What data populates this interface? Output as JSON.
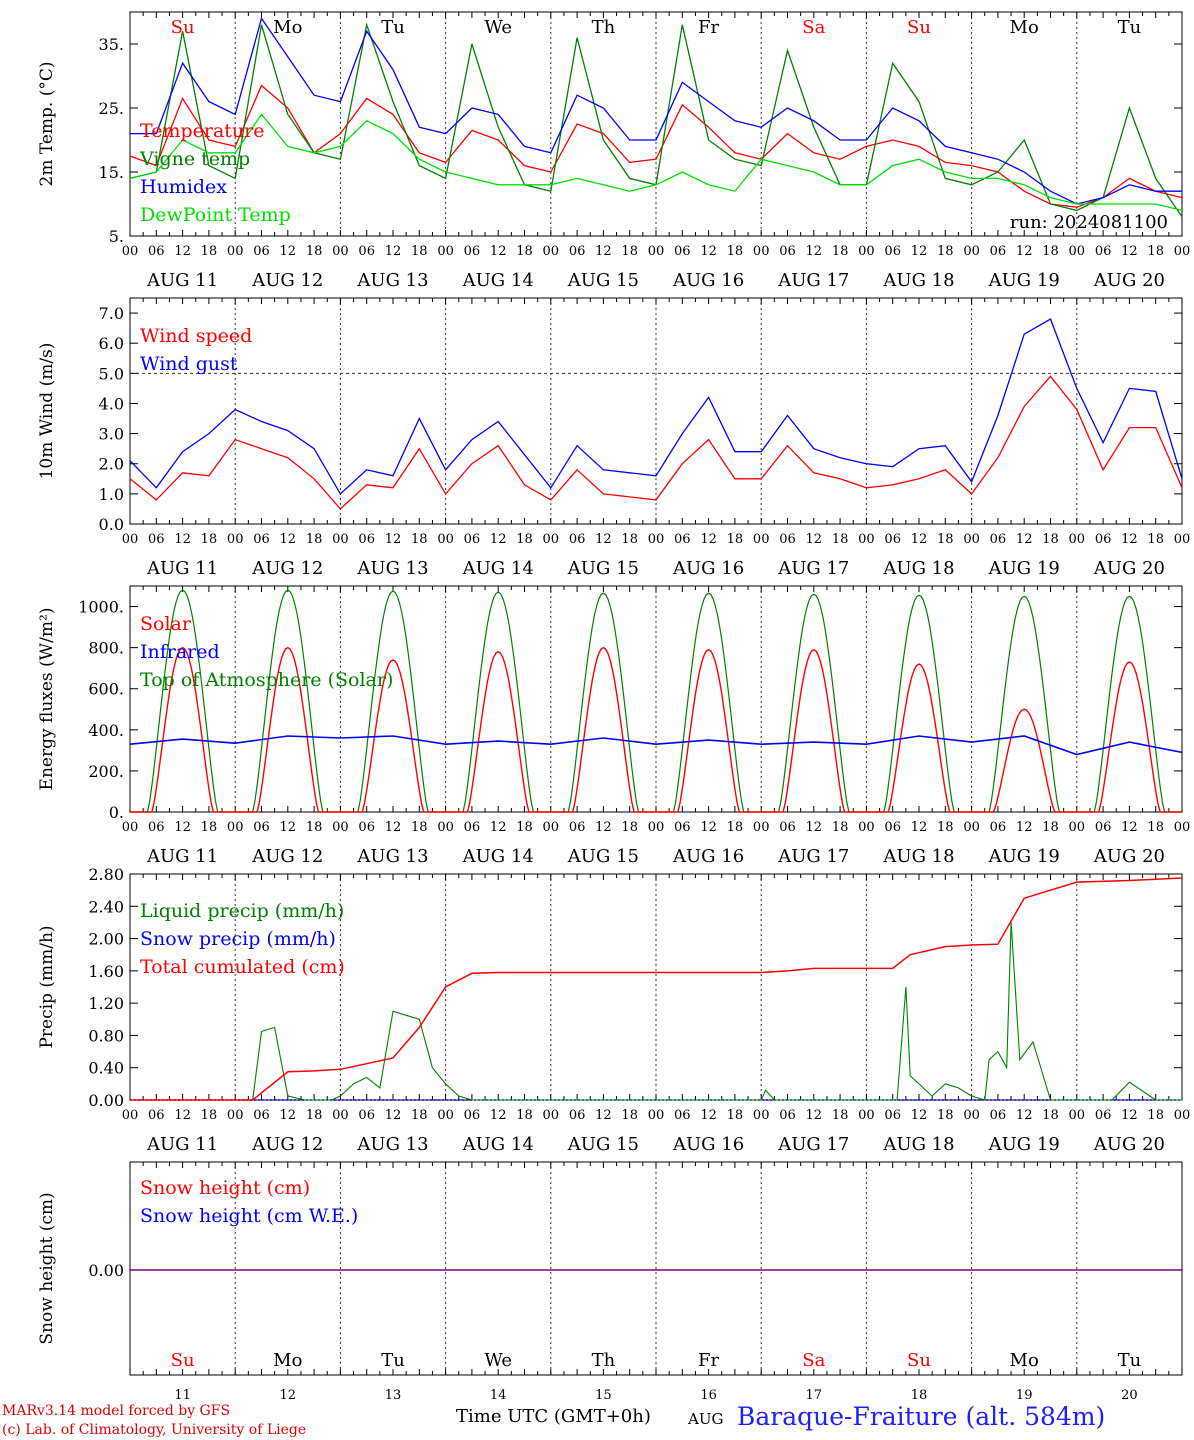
{
  "colors": {
    "red": "#ff0000",
    "green": "#008000",
    "blue": "#0000ff",
    "lightgreen": "#00e000",
    "purple": "#800080",
    "grid": "#555555"
  },
  "header_days": [
    {
      "label": "Su",
      "color": "#ff0000"
    },
    {
      "label": "Mo",
      "color": "#000000"
    },
    {
      "label": "Tu",
      "color": "#000000"
    },
    {
      "label": "We",
      "color": "#000000"
    },
    {
      "label": "Th",
      "color": "#000000"
    },
    {
      "label": "Fr",
      "color": "#000000"
    },
    {
      "label": "Sa",
      "color": "#ff0000"
    },
    {
      "label": "Su",
      "color": "#ff0000"
    },
    {
      "label": "Mo",
      "color": "#000000"
    },
    {
      "label": "Tu",
      "color": "#000000"
    }
  ],
  "hour_ticks": [
    "00",
    "06",
    "12",
    "18"
  ],
  "last_hour_tick": "00",
  "date_labels": [
    "AUG 11",
    "AUG 12",
    "AUG 13",
    "AUG 14",
    "AUG 15",
    "AUG 16",
    "AUG 17",
    "AUG 18",
    "AUG 19",
    "AUG 20"
  ],
  "day_numbers": [
    "11",
    "12",
    "13",
    "14",
    "15",
    "16",
    "17",
    "18",
    "19",
    "20"
  ],
  "run_label": "run: 2024081100",
  "footer": {
    "model": "MARv3.14 model forced by GFS",
    "lab": "(c) Lab. of Climatology, University of Liege",
    "time_label": "Time UTC (GMT+0h)",
    "aug": "AUG",
    "station": "Baraque-Fraiture (alt. 584m)"
  },
  "chart_data": [
    {
      "type": "line",
      "ylabel": "2m Temp. (°C)",
      "ylim": [
        5,
        40
      ],
      "yticks": [
        5,
        15,
        25,
        35
      ],
      "ytick_labels": [
        "5.",
        "15.",
        "25.",
        "35."
      ],
      "x_unit": "hours since AUG 11 00 UTC",
      "series": [
        {
          "name": "Temperature",
          "color": "#ff0000",
          "x": [
            0,
            6,
            12,
            18,
            24,
            30,
            36,
            42,
            48,
            54,
            60,
            66,
            72,
            78,
            84,
            90,
            96,
            102,
            108,
            114,
            120,
            126,
            132,
            138,
            144,
            150,
            156,
            162,
            168,
            174,
            180,
            186,
            192,
            198,
            204,
            210,
            216,
            222,
            228,
            234,
            240
          ],
          "y": [
            17.5,
            16,
            26.5,
            20,
            19,
            28.5,
            25,
            18,
            21,
            26.5,
            24,
            18,
            16.5,
            21.5,
            20,
            16,
            15,
            22.5,
            21,
            16.5,
            17,
            25.5,
            22,
            18,
            17,
            21,
            18,
            17,
            19,
            20,
            19,
            16.5,
            16,
            15,
            12,
            10,
            9.5,
            11,
            14,
            12,
            11
          ]
        },
        {
          "name": "Vigne temp",
          "color": "#008000",
          "x": [
            0,
            6,
            12,
            18,
            24,
            30,
            36,
            42,
            48,
            54,
            60,
            66,
            72,
            78,
            84,
            90,
            96,
            102,
            108,
            114,
            120,
            126,
            132,
            138,
            144,
            150,
            156,
            162,
            168,
            174,
            180,
            186,
            192,
            198,
            204,
            210,
            216,
            222,
            228,
            234,
            240
          ],
          "y": [
            14,
            15,
            37,
            16,
            14,
            38,
            24,
            18,
            17,
            38,
            26,
            16,
            14,
            35,
            22,
            13,
            12,
            36,
            20,
            14,
            13,
            38,
            20,
            17,
            16,
            34,
            22,
            13,
            13,
            32,
            26,
            14,
            13,
            15,
            20,
            10,
            9,
            11,
            25,
            14,
            8
          ]
        },
        {
          "name": "Humidex",
          "color": "#0000ff",
          "x": [
            0,
            6,
            12,
            18,
            24,
            30,
            36,
            42,
            48,
            54,
            60,
            66,
            72,
            78,
            84,
            90,
            96,
            102,
            108,
            114,
            120,
            126,
            132,
            138,
            144,
            150,
            156,
            162,
            168,
            174,
            180,
            186,
            192,
            198,
            204,
            210,
            216,
            222,
            228,
            234,
            240
          ],
          "y": [
            21,
            21,
            32,
            26,
            24,
            39,
            33,
            27,
            26,
            37,
            31,
            22,
            21,
            25,
            24,
            19,
            18,
            27,
            25,
            20,
            20,
            29,
            26,
            23,
            22,
            25,
            23,
            20,
            20,
            25,
            23,
            19,
            18,
            17,
            15,
            12,
            10,
            11,
            13,
            12,
            12
          ]
        },
        {
          "name": "DewPoint Temp",
          "color": "#00e000",
          "x": [
            0,
            6,
            12,
            18,
            24,
            30,
            36,
            42,
            48,
            54,
            60,
            66,
            72,
            78,
            84,
            90,
            96,
            102,
            108,
            114,
            120,
            126,
            132,
            138,
            144,
            150,
            156,
            162,
            168,
            174,
            180,
            186,
            192,
            198,
            204,
            210,
            216,
            222,
            228,
            234,
            240
          ],
          "y": [
            14,
            15,
            20,
            18,
            18,
            24,
            19,
            18,
            19,
            23,
            21,
            17,
            15,
            14,
            13,
            13,
            13,
            14,
            13,
            12,
            13,
            15,
            13,
            12,
            17,
            16,
            15,
            13,
            13,
            16,
            17,
            15,
            14,
            14,
            13,
            11,
            10,
            10,
            10,
            10,
            9
          ]
        }
      ]
    },
    {
      "type": "line",
      "ylabel": "10m Wind (m/s)",
      "ylim": [
        0,
        7.5
      ],
      "yticks": [
        0,
        1,
        2,
        3,
        4,
        5,
        6,
        7
      ],
      "ytick_labels": [
        "0.0",
        "1.0",
        "2.0",
        "3.0",
        "4.0",
        "5.0",
        "6.0",
        "7.0"
      ],
      "reference_line": 5,
      "x_unit": "hours since AUG 11 00 UTC",
      "series": [
        {
          "name": "Wind speed",
          "color": "#ff0000",
          "x": [
            0,
            6,
            12,
            18,
            24,
            30,
            36,
            42,
            48,
            54,
            60,
            66,
            72,
            78,
            84,
            90,
            96,
            102,
            108,
            114,
            120,
            126,
            132,
            138,
            144,
            150,
            156,
            162,
            168,
            174,
            180,
            186,
            192,
            198,
            204,
            210,
            216,
            222,
            228,
            234,
            240
          ],
          "y": [
            1.5,
            0.8,
            1.7,
            1.6,
            2.8,
            2.5,
            2.2,
            1.5,
            0.5,
            1.3,
            1.2,
            2.5,
            1.0,
            2.0,
            2.6,
            1.3,
            0.8,
            1.8,
            1.0,
            0.9,
            0.8,
            2.0,
            2.8,
            1.5,
            1.5,
            2.6,
            1.7,
            1.5,
            1.2,
            1.3,
            1.5,
            1.8,
            1.0,
            2.2,
            3.9,
            4.9,
            3.8,
            1.8,
            3.2,
            3.2,
            1.2
          ]
        },
        {
          "name": "Wind gust",
          "color": "#0000ff",
          "x": [
            0,
            6,
            12,
            18,
            24,
            30,
            36,
            42,
            48,
            54,
            60,
            66,
            72,
            78,
            84,
            90,
            96,
            102,
            108,
            114,
            120,
            126,
            132,
            138,
            144,
            150,
            156,
            162,
            168,
            174,
            180,
            186,
            192,
            198,
            204,
            210,
            216,
            222,
            228,
            234,
            240
          ],
          "y": [
            2.1,
            1.2,
            2.4,
            3.0,
            3.8,
            3.4,
            3.1,
            2.5,
            1.0,
            1.8,
            1.6,
            3.5,
            1.8,
            2.8,
            3.4,
            2.3,
            1.2,
            2.6,
            1.8,
            1.7,
            1.6,
            3.0,
            4.2,
            2.4,
            2.4,
            3.6,
            2.5,
            2.2,
            2.0,
            1.9,
            2.5,
            2.6,
            1.4,
            3.6,
            6.3,
            6.8,
            4.5,
            2.7,
            4.5,
            4.4,
            1.5
          ]
        }
      ]
    },
    {
      "type": "line",
      "ylabel": "Energy fluxes (W/m²)",
      "ylim": [
        0,
        1100
      ],
      "yticks": [
        0,
        200,
        400,
        600,
        800,
        1000
      ],
      "ytick_labels": [
        "0.",
        "200.",
        "400.",
        "600.",
        "800.",
        "1000."
      ],
      "x_unit": "hours since AUG 11 00 UTC",
      "solar_peaks": [
        800,
        800,
        740,
        780,
        800,
        790,
        790,
        720,
        500,
        730
      ],
      "toa_peaks": [
        1080,
        1080,
        1075,
        1070,
        1065,
        1065,
        1060,
        1055,
        1050,
        1050
      ],
      "series": [
        {
          "name": "Solar",
          "color": "#ff0000"
        },
        {
          "name": "Infrared",
          "color": "#0000ff",
          "x": [
            0,
            12,
            24,
            36,
            48,
            60,
            72,
            84,
            96,
            108,
            120,
            132,
            144,
            156,
            168,
            180,
            192,
            204,
            216,
            228,
            240
          ],
          "y": [
            330,
            355,
            335,
            370,
            360,
            370,
            330,
            345,
            330,
            360,
            330,
            350,
            330,
            340,
            330,
            370,
            340,
            370,
            280,
            340,
            290
          ]
        },
        {
          "name": "Top of Atmosphere (Solar)",
          "color": "#008000"
        }
      ]
    },
    {
      "type": "line",
      "ylabel": "Precip (mm/h)",
      "ylim": [
        0,
        2.8
      ],
      "yticks": [
        0,
        0.4,
        0.8,
        1.2,
        1.6,
        2.0,
        2.4,
        2.8
      ],
      "ytick_labels": [
        "0.00",
        "0.40",
        "0.80",
        "1.20",
        "1.60",
        "2.00",
        "2.40",
        "2.80"
      ],
      "x_unit": "hours since AUG 11 00 UTC",
      "series": [
        {
          "name": "Liquid precip (mm/h)",
          "color": "#008000",
          "x": [
            0,
            28,
            30,
            33,
            36,
            40,
            42,
            46,
            48,
            51,
            54,
            57,
            60,
            63,
            66,
            69,
            72,
            75,
            78,
            96,
            144,
            145,
            147,
            150,
            175,
            177,
            178,
            180,
            183,
            186,
            189,
            192,
            195,
            196,
            198,
            200,
            201,
            203,
            206,
            210,
            218,
            220,
            224,
            228,
            234,
            236,
            240
          ],
          "y": [
            0,
            0,
            0.85,
            0.9,
            0.05,
            0,
            0,
            0,
            0.05,
            0.2,
            0.28,
            0.15,
            1.1,
            1.05,
            1.0,
            0.4,
            0.2,
            0.05,
            0,
            0,
            0,
            0.12,
            0,
            0,
            0,
            1.4,
            0.3,
            0.2,
            0.05,
            0.2,
            0.15,
            0.05,
            0,
            0.5,
            0.6,
            0.4,
            2.2,
            0.5,
            0.72,
            0,
            0,
            0,
            0,
            0.22,
            0,
            0,
            0
          ]
        },
        {
          "name": "Snow precip (mm/h)",
          "color": "#0000ff",
          "x": [
            0,
            240
          ],
          "y": [
            0,
            0
          ]
        },
        {
          "name": "Total cumulated (cm)",
          "color": "#ff0000",
          "x": [
            0,
            28,
            36,
            42,
            48,
            54,
            60,
            66,
            72,
            78,
            84,
            96,
            144,
            150,
            156,
            168,
            174,
            178,
            186,
            192,
            198,
            204,
            216,
            228,
            240
          ],
          "y": [
            0,
            0,
            0.35,
            0.36,
            0.38,
            0.45,
            0.52,
            0.9,
            1.4,
            1.57,
            1.58,
            1.58,
            1.58,
            1.6,
            1.63,
            1.63,
            1.63,
            1.8,
            1.9,
            1.92,
            1.93,
            2.5,
            2.7,
            2.72,
            2.75
          ]
        }
      ]
    },
    {
      "type": "line",
      "ylabel": "Snow height (cm)",
      "ylim": [
        -1,
        1
      ],
      "yticks": [
        0
      ],
      "ytick_labels": [
        "0.00"
      ],
      "x_unit": "hours since AUG 11 00 UTC",
      "series": [
        {
          "name": "Snow height (cm)",
          "color": "#ff0000",
          "x": [
            0,
            240
          ],
          "y": [
            0,
            0
          ]
        },
        {
          "name": "Snow height (cm W.E.)",
          "color": "#0000ff",
          "x": [
            0,
            240
          ],
          "y": [
            0,
            0
          ]
        }
      ]
    }
  ]
}
